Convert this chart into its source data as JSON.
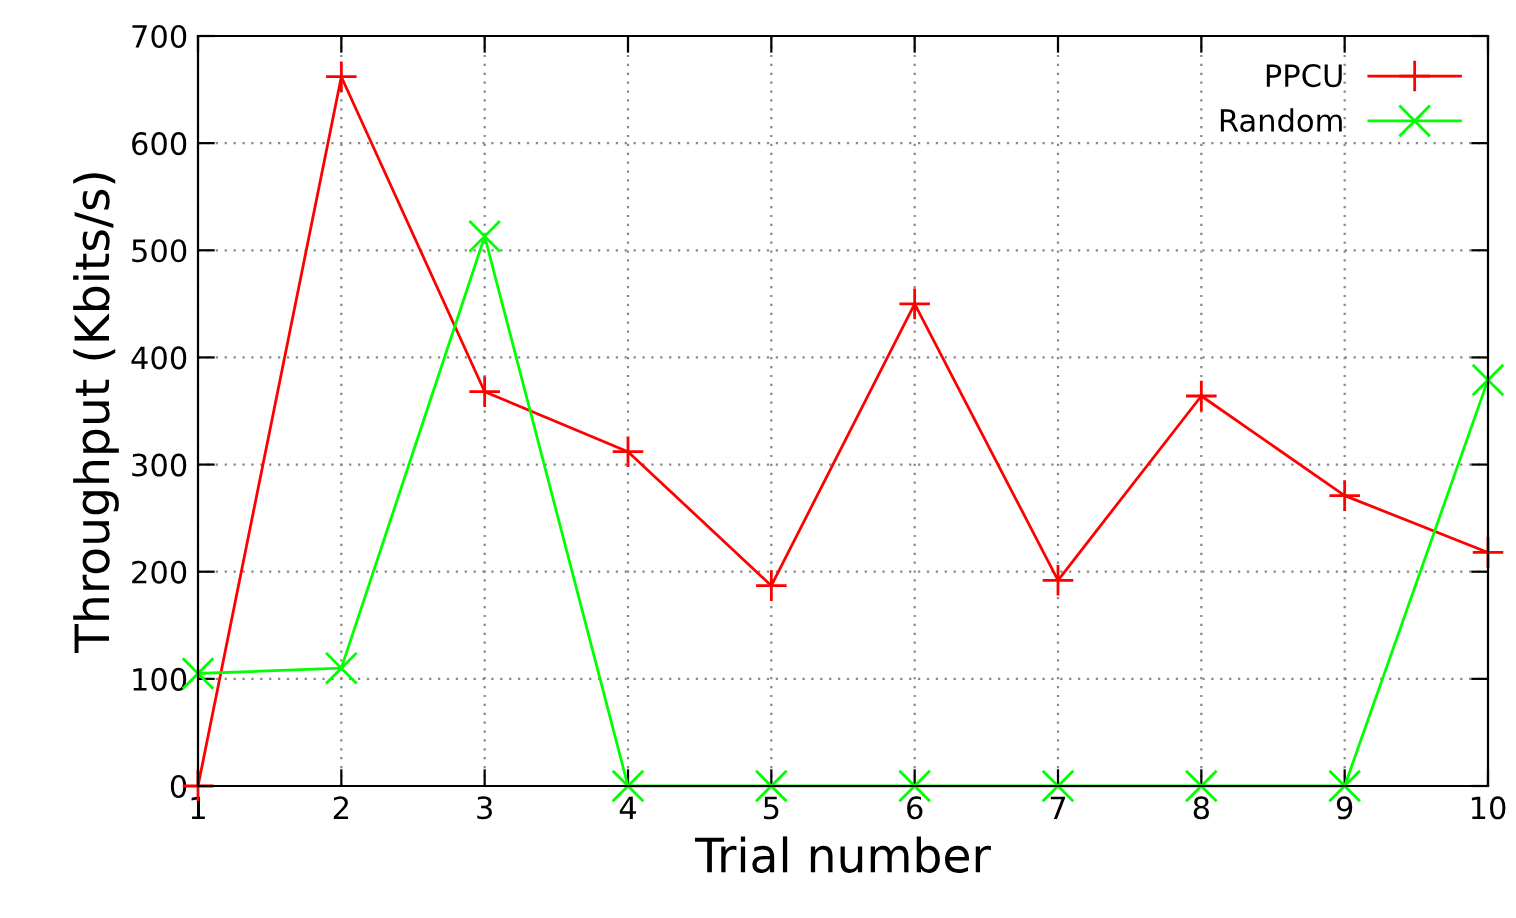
{
  "chart_data": {
    "type": "line",
    "xlabel": "Trial number",
    "ylabel": "Throughput (Kbits/s)",
    "x": [
      1,
      2,
      3,
      4,
      5,
      6,
      7,
      8,
      9,
      10
    ],
    "series": [
      {
        "name": "PPCU",
        "color": "#ff0000",
        "marker": "plus",
        "values": [
          0,
          662,
          368,
          312,
          187,
          450,
          192,
          364,
          271,
          218
        ]
      },
      {
        "name": "Random",
        "color": "#00ff00",
        "marker": "cross",
        "values": [
          105,
          110,
          513,
          0,
          0,
          0,
          0,
          0,
          0,
          379
        ]
      }
    ],
    "xlim": [
      1,
      10
    ],
    "xticks": [
      1,
      2,
      3,
      4,
      5,
      6,
      7,
      8,
      9,
      10
    ],
    "ylim": [
      0,
      700
    ],
    "yticks": [
      0,
      100,
      200,
      300,
      400,
      500,
      600,
      700
    ],
    "grid": true,
    "legend": "top right",
    "line_style": "solid"
  }
}
